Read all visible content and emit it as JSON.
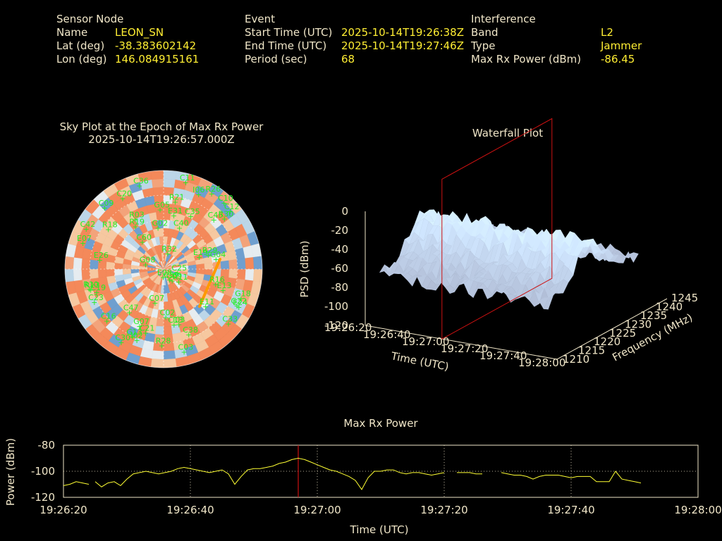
{
  "header": {
    "sensor": {
      "title": "Sensor Node",
      "rows": [
        {
          "label": "Name",
          "value": "LEON_SN"
        },
        {
          "label": "Lat (deg)",
          "value": "-38.383602142"
        },
        {
          "label": "Lon (deg)",
          "value": "146.084915161"
        }
      ]
    },
    "event": {
      "title": "Event",
      "rows": [
        {
          "label": "Start Time (UTC)",
          "value": "2025-10-14T19:26:38Z"
        },
        {
          "label": "End Time (UTC)",
          "value": "2025-10-14T19:27:46Z"
        },
        {
          "label": "Period (sec)",
          "value": "68"
        }
      ]
    },
    "interference": {
      "title": "Interference",
      "rows": [
        {
          "label": "Band",
          "value": "L2"
        },
        {
          "label": "Type",
          "value": "Jammer"
        },
        {
          "label": "Max Rx Power (dBm)",
          "value": "-86.45"
        }
      ]
    }
  },
  "skyplot": {
    "title_line1": "Sky Plot at the Epoch of Max Rx Power",
    "title_line2": "2025-10-14T19:26:57.000Z",
    "satellites": [
      "C19",
      "I03",
      "G09",
      "R21",
      "C10",
      "C07",
      "C23",
      "C21",
      "I02",
      "G05",
      "C35",
      "G08",
      "C25",
      "C11",
      "G07",
      "C20",
      "E26",
      "G04",
      "E19",
      "C47",
      "R26",
      "C13",
      "C09",
      "R28",
      "I06",
      "R03",
      "E07",
      "G22",
      "C40",
      "G18",
      "G13",
      "C16",
      "C33",
      "R30",
      "G02",
      "R16",
      "E11",
      "C39",
      "C38",
      "C30",
      "E13",
      "C12",
      "C45",
      "C36",
      "R10",
      "E24",
      "R13",
      "C02",
      "E08",
      "C60",
      "C42",
      "E31",
      "R18",
      "R32",
      "R29",
      "R19",
      "C03",
      "R11"
    ],
    "colors": {
      "hot": "#f4895a",
      "mid": "#f6c8a0",
      "cool": "#bcd6e8",
      "cold": "#6f9fcf",
      "sat": "#22ee22",
      "track": "#ff9900"
    }
  },
  "waterfall": {
    "title": "Waterfall Plot",
    "z_label": "PSD (dBm)",
    "z_ticks": [
      "0",
      "-20",
      "-40",
      "-60",
      "-80",
      "-100",
      "-120"
    ],
    "time_label": "Time (UTC)",
    "time_ticks": [
      "19:26:20",
      "19:26:40",
      "19:27:00",
      "19:27:20",
      "19:27:40",
      "19:28:00"
    ],
    "freq_label": "Frequency (MHz)",
    "freq_ticks": [
      "1210",
      "1215",
      "1220",
      "1225",
      "1230",
      "1235",
      "1240",
      "1245"
    ],
    "marker_color": "#cc1111"
  },
  "chart_data": {
    "type": "line",
    "title": "Max Rx Power",
    "xlabel": "Time (UTC)",
    "ylabel": "Power (dBm)",
    "x_ticks": [
      "19:26:20",
      "19:26:40",
      "19:27:00",
      "19:27:20",
      "19:27:40",
      "19:28:00"
    ],
    "y_ticks": [
      "-80",
      "-100",
      "-120"
    ],
    "ylim": [
      -120,
      -80
    ],
    "x_range_sec": [
      0,
      100
    ],
    "grid": true,
    "marker_time": "19:26:57",
    "marker_sec": 37,
    "series": [
      {
        "segments": [
          [
            [
              0,
              -111
            ],
            [
              1,
              -110
            ],
            [
              2,
              -108
            ],
            [
              3,
              -109
            ],
            [
              4,
              -110
            ]
          ],
          [
            [
              5,
              -108
            ],
            [
              6,
              -112
            ],
            [
              7,
              -109
            ],
            [
              8,
              -108
            ],
            [
              9,
              -111
            ],
            [
              10,
              -106
            ],
            [
              11,
              -102
            ],
            [
              12,
              -101
            ],
            [
              13,
              -100
            ],
            [
              14,
              -101
            ],
            [
              15,
              -102
            ],
            [
              16,
              -101
            ],
            [
              17,
              -100
            ],
            [
              18,
              -98
            ],
            [
              19,
              -97
            ],
            [
              20,
              -98
            ],
            [
              21,
              -99
            ],
            [
              22,
              -100
            ],
            [
              23,
              -101
            ],
            [
              24,
              -100
            ],
            [
              25,
              -99
            ],
            [
              26,
              -102
            ],
            [
              27,
              -110
            ],
            [
              28,
              -104
            ],
            [
              29,
              -99
            ],
            [
              30,
              -98
            ],
            [
              31,
              -98
            ],
            [
              32,
              -97
            ],
            [
              33,
              -96
            ],
            [
              34,
              -94
            ],
            [
              35,
              -93
            ],
            [
              36,
              -91
            ],
            [
              37,
              -90
            ],
            [
              38,
              -91
            ],
            [
              39,
              -93
            ],
            [
              40,
              -95
            ],
            [
              41,
              -97
            ],
            [
              42,
              -99
            ],
            [
              43,
              -100
            ],
            [
              44,
              -102
            ],
            [
              45,
              -104
            ],
            [
              46,
              -107
            ],
            [
              47,
              -114
            ],
            [
              48,
              -105
            ],
            [
              49,
              -100
            ],
            [
              50,
              -100
            ],
            [
              51,
              -99
            ],
            [
              52,
              -99
            ],
            [
              53,
              -101
            ],
            [
              54,
              -102
            ],
            [
              55,
              -101
            ],
            [
              56,
              -101
            ],
            [
              57,
              -102
            ],
            [
              58,
              -103
            ],
            [
              59,
              -102
            ],
            [
              60,
              -101
            ]
          ],
          [
            [
              62,
              -101
            ],
            [
              63,
              -101
            ],
            [
              64,
              -101
            ],
            [
              65,
              -102
            ],
            [
              66,
              -102
            ]
          ],
          [
            [
              69,
              -101
            ],
            [
              70,
              -102
            ],
            [
              71,
              -103
            ],
            [
              72,
              -103
            ],
            [
              73,
              -104
            ],
            [
              74,
              -106
            ],
            [
              75,
              -104
            ],
            [
              76,
              -103
            ],
            [
              77,
              -103
            ],
            [
              78,
              -103
            ],
            [
              79,
              -104
            ],
            [
              80,
              -105
            ],
            [
              81,
              -104
            ],
            [
              82,
              -104
            ],
            [
              83,
              -104
            ],
            [
              84,
              -108
            ],
            [
              85,
              -108
            ],
            [
              86,
              -108
            ],
            [
              87,
              -100
            ],
            [
              88,
              -106
            ],
            [
              89,
              -107
            ],
            [
              90,
              -108
            ],
            [
              91,
              -109
            ]
          ]
        ]
      }
    ],
    "colors": {
      "line": "#ffff33",
      "marker": "#cc1111",
      "axis": "#f0e6c8",
      "grid": "#f0e6c8"
    }
  }
}
